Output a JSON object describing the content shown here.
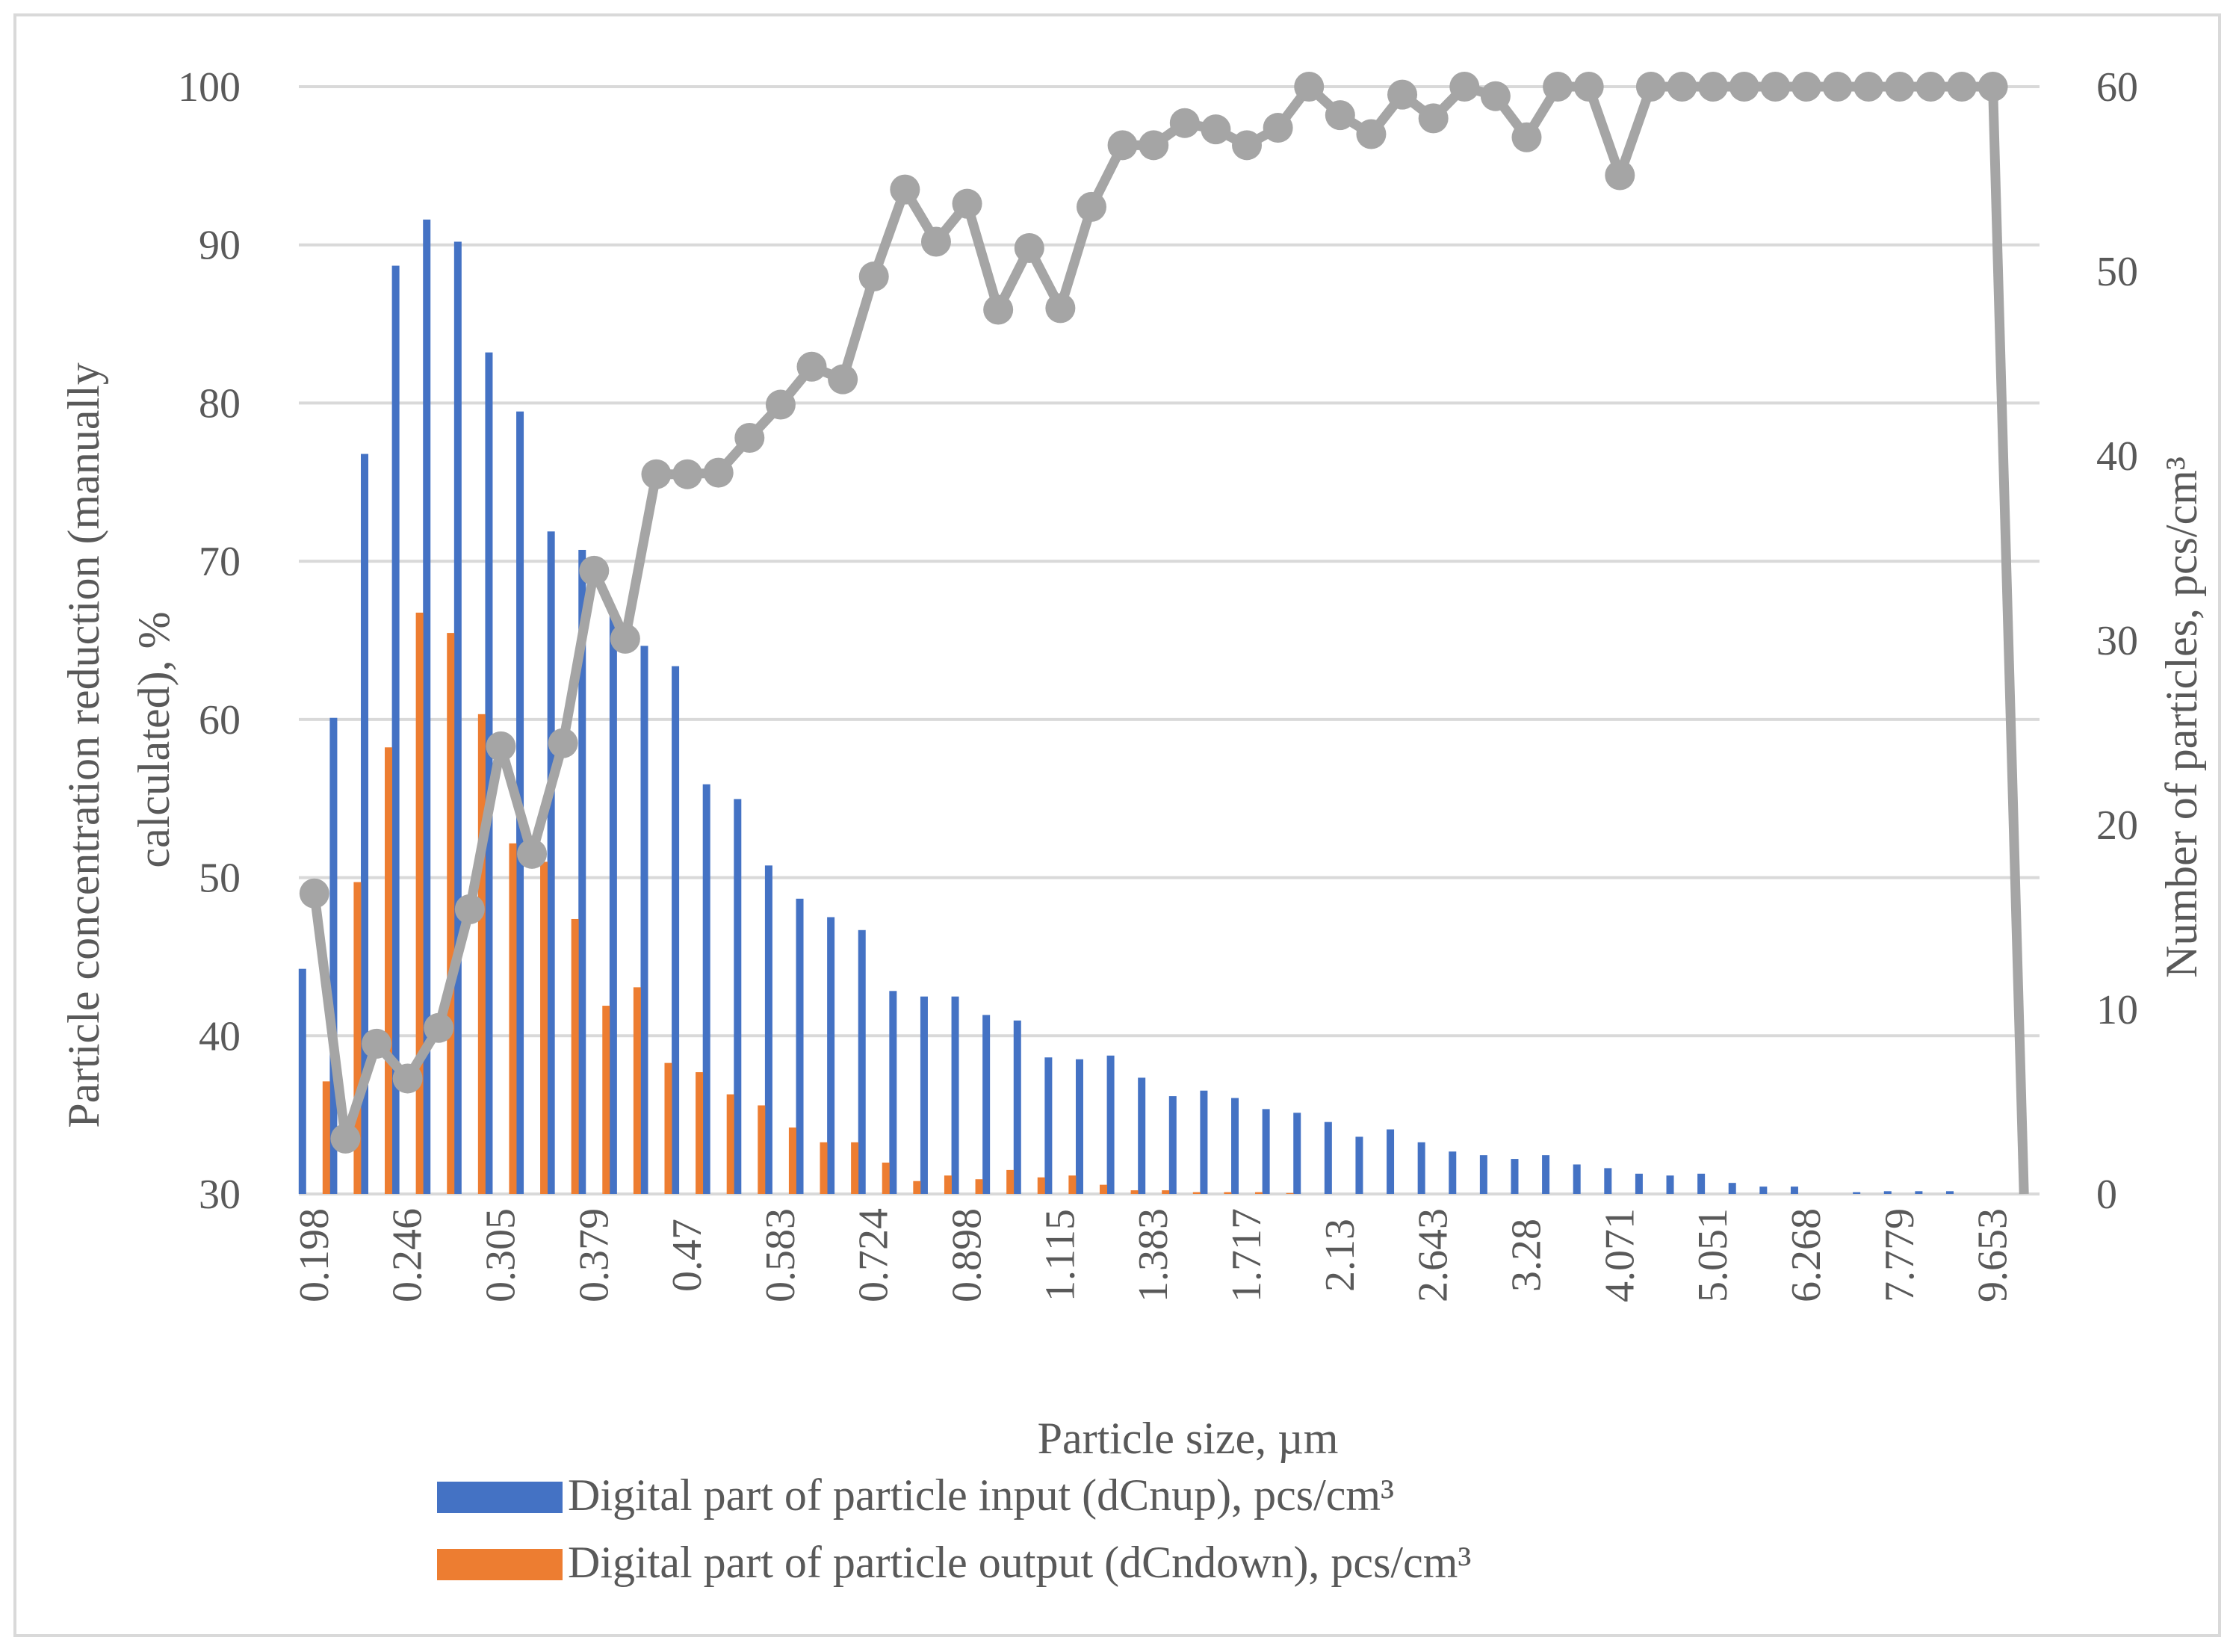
{
  "colors": {
    "input_bar": "#4472C4",
    "output_bar": "#ED7D31",
    "reduction_line": "#A5A5A5",
    "gridline": "#D9D9D9",
    "text": "#595959"
  },
  "chart_data": {
    "type": "bar",
    "title": "",
    "xlabel": "Particle size, µm",
    "ylabel": "Particle concentration reduction (manually calculated), %",
    "ylabel_lines": [
      "Particle concentration reduction (manually",
      "calculated), %"
    ],
    "y2label": "Number of particles, pcs/cm³",
    "ylim": [
      30,
      100
    ],
    "yticks": [
      30,
      40,
      50,
      60,
      70,
      80,
      90,
      100
    ],
    "y2lim": [
      0,
      60
    ],
    "y2ticks": [
      0,
      10,
      20,
      30,
      40,
      50,
      60
    ],
    "grid": true,
    "legend_position": "bottom",
    "category_count": 56,
    "x_tick_labels": [
      "0.198",
      "0.246",
      "0.305",
      "0.379",
      "0.47",
      "0.583",
      "0.724",
      "0.898",
      "1.115",
      "1.383",
      "1.717",
      "2.13",
      "2.643",
      "3.28",
      "4.071",
      "5.051",
      "6.268",
      "7.779",
      "9.653"
    ],
    "x_tick_indices": [
      0,
      3,
      6,
      9,
      12,
      15,
      18,
      21,
      24,
      27,
      30,
      33,
      36,
      39,
      42,
      45,
      48,
      51,
      54
    ],
    "series": [
      {
        "name": "Digital part of particle input (dCnup), pcs/cm³",
        "kind": "bar",
        "axis": "secondary",
        "values": [
          12.2,
          25.8,
          40.1,
          50.3,
          52.8,
          51.6,
          45.6,
          42.4,
          35.9,
          34.9,
          31.4,
          29.7,
          28.6,
          22.2,
          21.4,
          17.8,
          16.0,
          15.0,
          14.3,
          11.0,
          10.7,
          10.7,
          9.7,
          9.4,
          7.4,
          7.3,
          7.5,
          6.3,
          5.3,
          5.6,
          5.2,
          4.6,
          4.4,
          3.9,
          3.1,
          3.5,
          2.8,
          2.3,
          2.1,
          1.9,
          2.1,
          1.6,
          1.4,
          1.1,
          1.0,
          1.1,
          0.6,
          0.4,
          0.4,
          0.0,
          0.1,
          0.15,
          0.15,
          0.15,
          0.0,
          0.0
        ]
      },
      {
        "name": "Digital part of particle output (dCndown), pcs/cm³",
        "kind": "bar",
        "axis": "secondary",
        "values": [
          6.1,
          16.9,
          24.2,
          31.5,
          30.4,
          26.0,
          19.0,
          18.0,
          14.9,
          10.2,
          11.2,
          7.1,
          6.6,
          5.4,
          4.8,
          3.6,
          2.8,
          2.8,
          1.7,
          0.7,
          1.0,
          0.8,
          1.3,
          0.9,
          1.0,
          0.5,
          0.2,
          0.2,
          0.1,
          0.1,
          0.1,
          0.05,
          0.0,
          0.0,
          0.0,
          0.0,
          0.0,
          0.0,
          0.0,
          0.0,
          0.0,
          0.0,
          0.0,
          0.0,
          0.0,
          0.0,
          0.0,
          0.0,
          0.0,
          0.0,
          0.0,
          0.0,
          0.0,
          0.0,
          0.0,
          0.0
        ]
      },
      {
        "name": "Particle concentration reduction (manually calculated), %",
        "kind": "line",
        "axis": "primary",
        "values": [
          49.0,
          33.5,
          39.5,
          37.3,
          40.5,
          48.0,
          58.3,
          51.5,
          58.5,
          69.4,
          65.1,
          75.5,
          75.5,
          75.6,
          77.8,
          79.9,
          82.3,
          81.5,
          88.0,
          93.5,
          90.2,
          92.6,
          85.9,
          89.8,
          86.0,
          92.4,
          96.3,
          96.3,
          97.7,
          97.3,
          96.3,
          97.4,
          100.0,
          98.2,
          97.0,
          99.5,
          98.0,
          100.0,
          99.4,
          96.8,
          100.0,
          100.0,
          94.4,
          100.0,
          100.0,
          100.0,
          100.0,
          100.0,
          100.0,
          100.0,
          100.0,
          100.0,
          100.0,
          100.0,
          100.0,
          30.0
        ]
      }
    ]
  }
}
